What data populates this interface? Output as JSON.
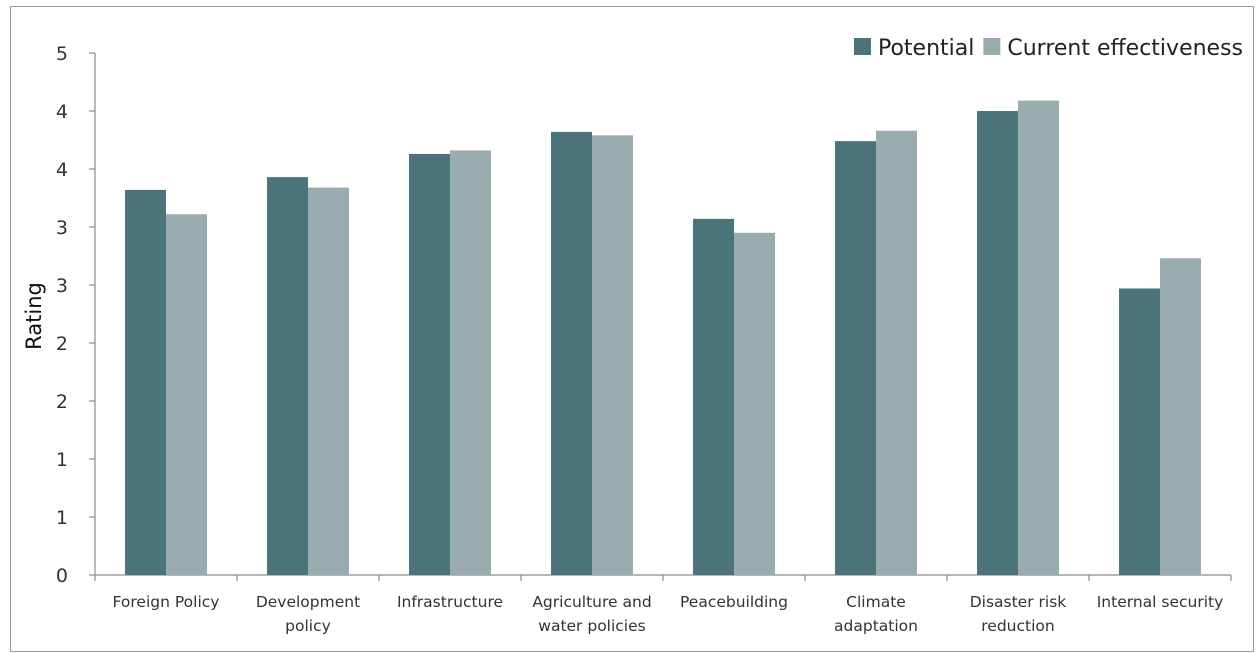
{
  "chart_data": {
    "type": "bar",
    "title": "",
    "xlabel": "",
    "ylabel": "Rating",
    "ylim": [
      0,
      4.5
    ],
    "y_tick_values": [
      0,
      0.5,
      1,
      1.5,
      2,
      2.5,
      3,
      3.5,
      4,
      4.5
    ],
    "y_tick_labels": [
      "0",
      "1",
      "1",
      "2",
      "2",
      "3",
      "3",
      "4",
      "4",
      "5"
    ],
    "grid": false,
    "legend_position": "top-right",
    "categories": [
      [
        "Foreign Policy"
      ],
      [
        "Development",
        "policy"
      ],
      [
        "Infrastructure"
      ],
      [
        "Agriculture and",
        "water policies"
      ],
      [
        "Peacebuilding"
      ],
      [
        "Climate",
        "adaptation"
      ],
      [
        "Disaster risk",
        "reduction"
      ],
      [
        "Internal security"
      ]
    ],
    "series": [
      {
        "name": "Potential",
        "color": "#4a7479",
        "values": [
          3.32,
          3.43,
          3.63,
          3.82,
          3.07,
          3.74,
          4.0,
          2.47
        ]
      },
      {
        "name": "Current effectiveness",
        "color": "#99acaf",
        "values": [
          3.11,
          3.34,
          3.66,
          3.79,
          2.95,
          3.83,
          4.09,
          2.73
        ]
      }
    ]
  }
}
